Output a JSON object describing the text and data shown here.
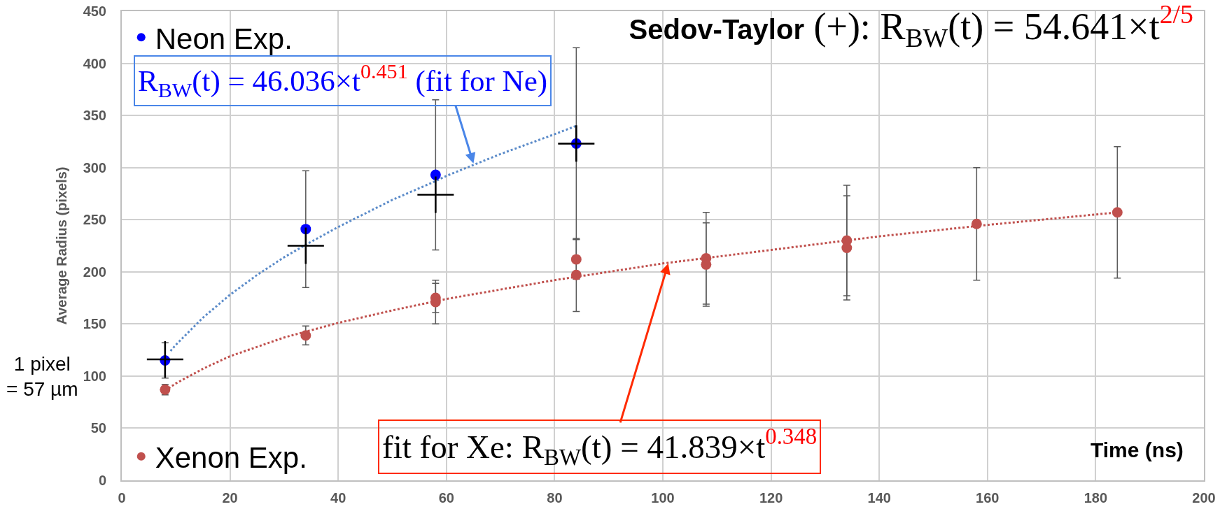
{
  "chart_data": {
    "type": "scatter",
    "title": "Sedov-Taylor (+): R$_{BW}$(t) = 54.641×t$^{2/5}$",
    "xlabel": "Time (ns)",
    "ylabel": "Average Radius (pixels)",
    "annotations": [
      {
        "text": "R$_{BW}$(t) = 46.036×t$^{0.451}$ (fit for Ne)",
        "x": 65,
        "y": 304
      },
      {
        "text": "fit for Xe: R$_{BW}$(t) = 41.839×t$^{0.348}$",
        "x": 101,
        "y": 208
      },
      "1 pixel\n= 57 µm"
    ],
    "series": [
      {
        "type": "line",
        "color": "#5b8bc9",
        "line_style": "dotted",
        "marker": "none",
        "x": [
          9,
          10,
          15,
          20,
          25,
          30,
          34,
          40,
          50,
          58,
          60,
          70,
          80,
          84
        ],
        "values": [
          124,
          130,
          156,
          178,
          197,
          214,
          226,
          243,
          269,
          287,
          292,
          313,
          332,
          340
        ]
      },
      {
        "type": "line",
        "color": "#c0504d",
        "line_style": "dotted",
        "marker": "none",
        "x": [
          8,
          10,
          15,
          20,
          30,
          40,
          50,
          60,
          80,
          100,
          120,
          140,
          160,
          184
        ],
        "values": [
          86,
          93,
          107,
          119,
          137,
          151,
          163,
          174,
          192,
          208,
          221,
          234,
          245,
          257
        ]
      },
      {
        "name": "Neon Exp.",
        "color": "#0000ff",
        "x": [
          8,
          34,
          58,
          84
        ],
        "values": [
          115,
          241,
          293,
          323
        ],
        "errors": [
          17,
          56,
          72,
          92
        ]
      },
      {
        "name": "Xenon Exp.",
        "color": "#c0504d",
        "x": [
          8,
          34,
          58,
          58,
          84,
          84,
          108,
          108,
          134,
          134,
          158,
          184
        ],
        "values": [
          87,
          139,
          175,
          171,
          212,
          197,
          213,
          207,
          230,
          223,
          246,
          257
        ],
        "errors": [
          5,
          9,
          14,
          21,
          19,
          35,
          44,
          40,
          53,
          50,
          54,
          63
        ]
      },
      {
        "color": "#000000",
        "marker": "cross",
        "x": [
          8,
          34,
          58,
          84
        ],
        "values": [
          116,
          225,
          274,
          323
        ]
      }
    ],
    "xlim": [
      0,
      200
    ],
    "xticks": [
      0,
      20,
      40,
      60,
      80,
      100,
      120,
      140,
      160,
      180,
      200
    ],
    "ylim": [
      0,
      450
    ],
    "yticks": [
      0,
      50,
      100,
      150,
      200,
      250,
      300,
      350,
      400,
      450
    ],
    "grid": true,
    "legend": "left",
    "marker": "circle"
  }
}
